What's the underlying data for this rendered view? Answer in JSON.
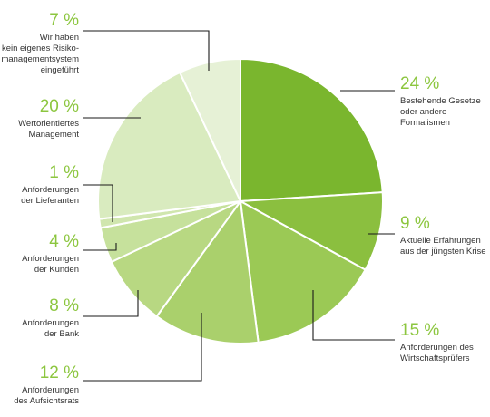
{
  "chart_data": {
    "type": "pie",
    "title": "",
    "start_angle_deg": 0,
    "direction": "clockwise",
    "slices": [
      {
        "value": 24,
        "pct_label": "24 %",
        "lines": [
          "Bestehende Gesetze",
          "oder andere",
          "Formalismen"
        ],
        "color": "#7ab62e"
      },
      {
        "value": 9,
        "pct_label": "9 %",
        "lines": [
          "Aktuelle Erfahrungen",
          "aus der jüngsten Krise"
        ],
        "color": "#8bbf3f"
      },
      {
        "value": 15,
        "pct_label": "15 %",
        "lines": [
          "Anforderungen des",
          "Wirtschaftsprüfers"
        ],
        "color": "#9bc955"
      },
      {
        "value": 12,
        "pct_label": "12 %",
        "lines": [
          "Anforderungen",
          "des Aufsichtsrats"
        ],
        "color": "#aad06c"
      },
      {
        "value": 8,
        "pct_label": "8 %",
        "lines": [
          "Anforderungen",
          "der Bank"
        ],
        "color": "#b8d882"
      },
      {
        "value": 4,
        "pct_label": "4 %",
        "lines": [
          "Anforderungen",
          "der Kunden"
        ],
        "color": "#c6e19c"
      },
      {
        "value": 1,
        "pct_label": "1 %",
        "lines": [
          "Anforderungen",
          "der Lieferanten"
        ],
        "color": "#d0e6ae"
      },
      {
        "value": 20,
        "pct_label": "20 %",
        "lines": [
          "Wertorientiertes",
          "Management"
        ],
        "color": "#d9ebbf"
      },
      {
        "value": 7,
        "pct_label": "7 %",
        "lines": [
          "Wir haben",
          "kein eigenes Risiko-",
          "managementsystem",
          "eingeführt"
        ],
        "color": "#e6f1d6"
      }
    ]
  }
}
